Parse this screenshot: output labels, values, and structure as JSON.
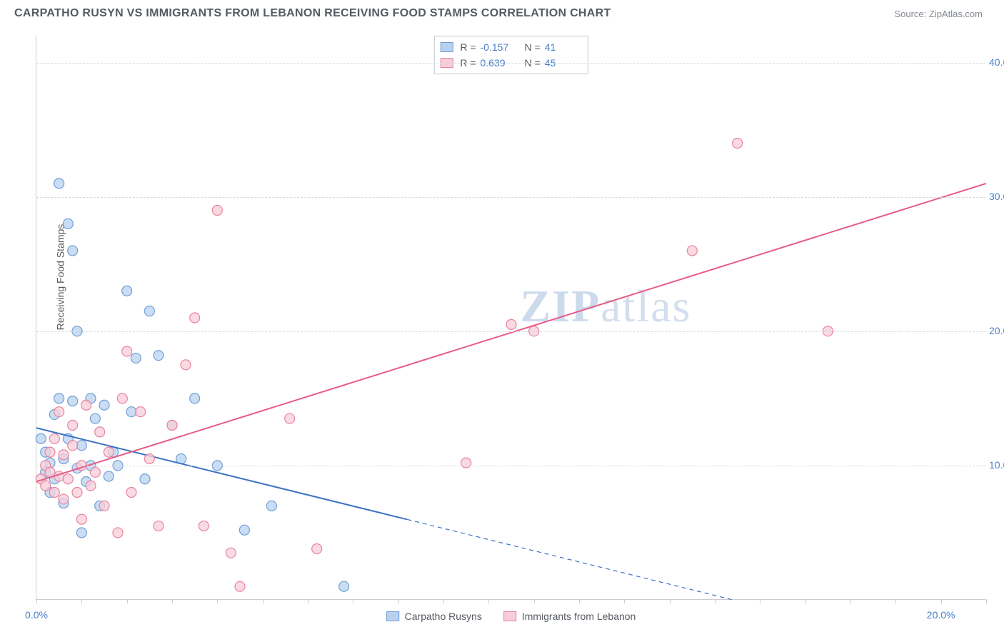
{
  "title": "CARPATHO RUSYN VS IMMIGRANTS FROM LEBANON RECEIVING FOOD STAMPS CORRELATION CHART",
  "source_prefix": "Source: ",
  "source_name": "ZipAtlas.com",
  "ylabel": "Receiving Food Stamps",
  "watermark_a": "ZIP",
  "watermark_b": "atlas",
  "chart": {
    "type": "scatter_with_regression",
    "xlim": [
      0,
      21
    ],
    "ylim": [
      0,
      42
    ],
    "yticks": [
      {
        "v": 10,
        "label": "10.0%"
      },
      {
        "v": 20,
        "label": "20.0%"
      },
      {
        "v": 30,
        "label": "30.0%"
      },
      {
        "v": 40,
        "label": "40.0%"
      }
    ],
    "xticks_minor": [
      0,
      1,
      2,
      3,
      4,
      5,
      6,
      7,
      8,
      9,
      10,
      11,
      12,
      13,
      14,
      15,
      16,
      17,
      18,
      19,
      20,
      21
    ],
    "xticks_label": [
      {
        "v": 0,
        "label": "0.0%"
      },
      {
        "v": 20,
        "label": "20.0%"
      }
    ],
    "background_color": "#ffffff",
    "grid_color": "#d6d9de",
    "axis_color": "#c9cdd3",
    "text_color": "#555b63",
    "tick_value_color": "#4a7ec9",
    "marker_radius": 7,
    "marker_stroke_width": 1.2,
    "line_width": 2,
    "series": [
      {
        "key": "carpatho",
        "name": "Carpatho Rusyns",
        "color_fill": "#b9d1ef",
        "color_stroke": "#6e9fd8",
        "line_color": "#3b73c6",
        "R": "-0.157",
        "N": "41",
        "regression": {
          "x1": 0,
          "y1": 12.8,
          "x_solid_end": 8.2,
          "x2": 15.4,
          "y2": 0
        },
        "points": [
          [
            0.1,
            12.0
          ],
          [
            0.2,
            9.5
          ],
          [
            0.2,
            11.0
          ],
          [
            0.3,
            8.0
          ],
          [
            0.3,
            10.2
          ],
          [
            0.4,
            13.8
          ],
          [
            0.4,
            9.0
          ],
          [
            0.5,
            31.0
          ],
          [
            0.5,
            15.0
          ],
          [
            0.6,
            7.2
          ],
          [
            0.6,
            10.5
          ],
          [
            0.7,
            28.0
          ],
          [
            0.7,
            12.0
          ],
          [
            0.8,
            14.8
          ],
          [
            0.8,
            26.0
          ],
          [
            0.9,
            9.8
          ],
          [
            0.9,
            20.0
          ],
          [
            1.0,
            11.5
          ],
          [
            1.0,
            5.0
          ],
          [
            1.1,
            8.8
          ],
          [
            1.2,
            15.0
          ],
          [
            1.2,
            10.0
          ],
          [
            1.3,
            13.5
          ],
          [
            1.4,
            7.0
          ],
          [
            1.5,
            14.5
          ],
          [
            1.6,
            9.2
          ],
          [
            1.7,
            11.0
          ],
          [
            1.8,
            10.0
          ],
          [
            2.0,
            23.0
          ],
          [
            2.1,
            14.0
          ],
          [
            2.2,
            18.0
          ],
          [
            2.4,
            9.0
          ],
          [
            2.5,
            21.5
          ],
          [
            2.7,
            18.2
          ],
          [
            3.0,
            13.0
          ],
          [
            3.2,
            10.5
          ],
          [
            3.5,
            15.0
          ],
          [
            4.0,
            10.0
          ],
          [
            4.6,
            5.2
          ],
          [
            5.2,
            7.0
          ],
          [
            6.8,
            1.0
          ]
        ]
      },
      {
        "key": "lebanon",
        "name": "Immigrants from Lebanon",
        "color_fill": "#f7cdd8",
        "color_stroke": "#e9839f",
        "line_color": "#e85a84",
        "R": "0.639",
        "N": "45",
        "regression": {
          "x1": 0,
          "y1": 8.8,
          "x_solid_end": 21,
          "x2": 21,
          "y2": 31.0
        },
        "points": [
          [
            0.1,
            9.0
          ],
          [
            0.2,
            10.0
          ],
          [
            0.2,
            8.5
          ],
          [
            0.3,
            9.5
          ],
          [
            0.3,
            11.0
          ],
          [
            0.4,
            8.0
          ],
          [
            0.4,
            12.0
          ],
          [
            0.5,
            9.2
          ],
          [
            0.5,
            14.0
          ],
          [
            0.6,
            7.5
          ],
          [
            0.6,
            10.8
          ],
          [
            0.7,
            9.0
          ],
          [
            0.8,
            11.5
          ],
          [
            0.8,
            13.0
          ],
          [
            0.9,
            8.0
          ],
          [
            1.0,
            10.0
          ],
          [
            1.0,
            6.0
          ],
          [
            1.1,
            14.5
          ],
          [
            1.2,
            8.5
          ],
          [
            1.3,
            9.5
          ],
          [
            1.4,
            12.5
          ],
          [
            1.5,
            7.0
          ],
          [
            1.6,
            11.0
          ],
          [
            1.8,
            5.0
          ],
          [
            1.9,
            15.0
          ],
          [
            2.0,
            18.5
          ],
          [
            2.1,
            8.0
          ],
          [
            2.3,
            14.0
          ],
          [
            2.5,
            10.5
          ],
          [
            2.7,
            5.5
          ],
          [
            3.0,
            13.0
          ],
          [
            3.3,
            17.5
          ],
          [
            3.5,
            21.0
          ],
          [
            3.7,
            5.5
          ],
          [
            4.0,
            29.0
          ],
          [
            4.3,
            3.5
          ],
          [
            4.5,
            1.0
          ],
          [
            5.6,
            13.5
          ],
          [
            6.2,
            3.8
          ],
          [
            9.5,
            10.2
          ],
          [
            10.5,
            20.5
          ],
          [
            11.0,
            20.0
          ],
          [
            14.5,
            26.0
          ],
          [
            15.5,
            34.0
          ],
          [
            17.5,
            20.0
          ]
        ]
      }
    ]
  }
}
